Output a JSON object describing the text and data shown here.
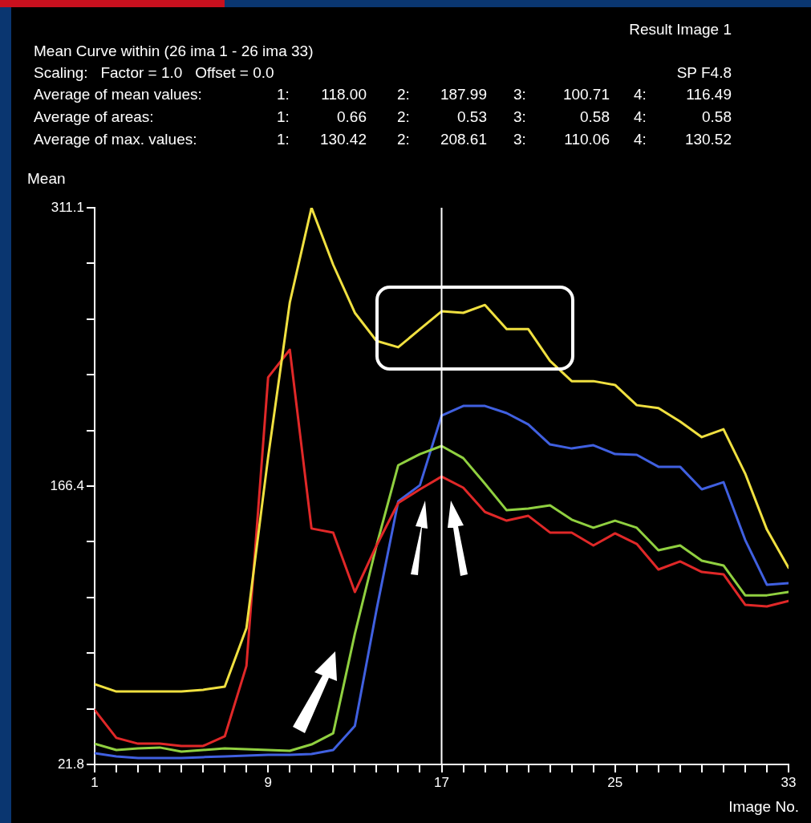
{
  "chart_data": {
    "type": "line",
    "title": "Result Image 1",
    "subtitle": "Mean Curve within (26 ima 1 - 26 ima 33)",
    "xlabel": "Image No.",
    "ylabel": "Mean",
    "annotations": [
      "Scaling:   Factor = 1.0   Offset = 0.0",
      "SP F4.8",
      "Average of mean values:  1:  118.00  2:  187.99  3:  100.71  4:  116.49",
      "Average of areas:  1:  0.66  2:  0.53  3:  0.58  4:  0.58",
      "Average of max. values:  1:  130.42  2:  208.61  3:  110.06  4:  130.52"
    ],
    "x": [
      1,
      2,
      3,
      4,
      5,
      6,
      7,
      8,
      9,
      10,
      11,
      12,
      13,
      14,
      15,
      16,
      17,
      18,
      19,
      20,
      21,
      22,
      23,
      24,
      25,
      26,
      27,
      28,
      29,
      30,
      31,
      32,
      33
    ],
    "series": [
      {
        "color": "#f0e040",
        "values": [
          63.5,
          59.7,
          59.7,
          59.7,
          59.7,
          60.6,
          62.2,
          92.7,
          181.5,
          261.9,
          311.1,
          281.5,
          256.5,
          241.9,
          238.6,
          248,
          257.3,
          256.5,
          260.6,
          248,
          248,
          231.5,
          221,
          221,
          219,
          208.5,
          207,
          200,
          191.9,
          196,
          173,
          143.9,
          124
        ]
      },
      {
        "color": "#e02828",
        "values": [
          50.1,
          35.6,
          32.6,
          32.6,
          31.4,
          31.4,
          36.4,
          73,
          223,
          237.3,
          144.4,
          142.3,
          111.4,
          135.6,
          157.7,
          164.8,
          171.4,
          165.6,
          153,
          148.5,
          151,
          142.3,
          142.3,
          135.6,
          141.9,
          136.4,
          123.1,
          127.3,
          121.8,
          120.6,
          104.8,
          103.9,
          106.8
        ]
      },
      {
        "color": "#90d040",
        "values": [
          32.6,
          29.3,
          30.1,
          30.6,
          28.5,
          29.3,
          30.1,
          29.7,
          29.3,
          28.9,
          32.2,
          38,
          89.7,
          135.6,
          177.3,
          183.1,
          187.3,
          181,
          167.7,
          153.9,
          154.8,
          156.4,
          149,
          144.8,
          148.5,
          144.8,
          133.1,
          135.6,
          127.7,
          125.2,
          109.7,
          109.7,
          111.4
        ]
      },
      {
        "color": "#4060e0",
        "values": [
          27.6,
          26,
          25.1,
          25.1,
          25.1,
          25.6,
          26,
          26.4,
          26.8,
          26.8,
          27.2,
          29.3,
          41.8,
          102.2,
          158.5,
          166.9,
          203.1,
          208.1,
          208.1,
          204.4,
          198.5,
          188.1,
          186,
          187.7,
          183.1,
          182.7,
          176.5,
          176.5,
          164.8,
          168.5,
          138.5,
          115.2,
          116
        ]
      }
    ],
    "xlim": [
      1,
      33
    ],
    "xticks": [
      1,
      {
        "value": 2,
        "label": null
      },
      {
        "value": 3,
        "label": null
      },
      {
        "value": 4,
        "label": null
      },
      {
        "value": 5,
        "label": null
      },
      {
        "value": 6,
        "label": null
      },
      {
        "value": 7,
        "label": null
      },
      {
        "value": 8,
        "label": null
      },
      9,
      {
        "value": 10,
        "label": null
      },
      {
        "value": 11,
        "label": null
      },
      {
        "value": 12,
        "label": null
      },
      {
        "value": 13,
        "label": null
      },
      {
        "value": 14,
        "label": null
      },
      {
        "value": 15,
        "label": null
      },
      {
        "value": 16,
        "label": null
      },
      17,
      {
        "value": 18,
        "label": null
      },
      {
        "value": 19,
        "label": null
      },
      {
        "value": 20,
        "label": null
      },
      {
        "value": 21,
        "label": null
      },
      {
        "value": 22,
        "label": null
      },
      {
        "value": 23,
        "label": null
      },
      {
        "value": 24,
        "label": null
      },
      25,
      {
        "value": 26,
        "label": null
      },
      {
        "value": 27,
        "label": null
      },
      {
        "value": 28,
        "label": null
      },
      {
        "value": 29,
        "label": null
      },
      {
        "value": 30,
        "label": null
      },
      {
        "value": 31,
        "label": null
      },
      {
        "value": 32,
        "label": null
      },
      33
    ],
    "ylim": [
      21.8,
      311.1
    ],
    "yticks": [
      21.8,
      {
        "value": 50.7,
        "label": null
      },
      {
        "value": 79.7,
        "label": null
      },
      {
        "value": 108.6,
        "label": null
      },
      {
        "value": 137.5,
        "label": null
      },
      166.4,
      {
        "value": 195.3,
        "label": null
      },
      {
        "value": 224.3,
        "label": null
      },
      {
        "value": 253.2,
        "label": null
      },
      {
        "value": 282.2,
        "label": null
      },
      311.1
    ],
    "ref_lines": [
      {
        "axis": "x",
        "value": 17,
        "color": "#ffffff"
      }
    ],
    "marker": "none",
    "line_style": "solid"
  }
}
